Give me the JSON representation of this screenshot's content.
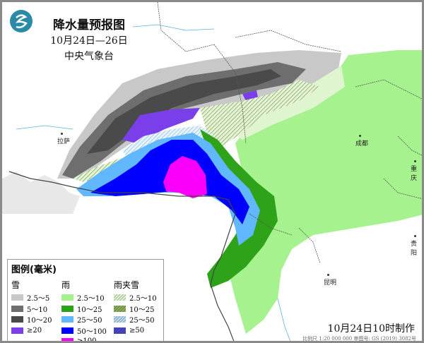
{
  "header": {
    "title": "降水量预报图",
    "date_range": "10月24日—26日",
    "issuer": "中央气象台"
  },
  "cities": [
    "拉萨",
    "成都",
    "重庆",
    "贵阳",
    "昆明"
  ],
  "legend": {
    "title": "图例(毫米)",
    "groups": [
      {
        "name": "雪",
        "items": [
          {
            "label": "2.5～5",
            "color": "#c8c8c8"
          },
          {
            "label": "5～10",
            "color": "#6e6e6e"
          },
          {
            "label": "10～20",
            "color": "#4a4a4a"
          },
          {
            "label": "≥20",
            "color": "#7a3fe8"
          }
        ]
      },
      {
        "name": "雨",
        "items": [
          {
            "label": "2.5～10",
            "color": "#a6f28e"
          },
          {
            "label": "10～25",
            "color": "#2ea31a"
          },
          {
            "label": "25～50",
            "color": "#61b8ff"
          },
          {
            "label": "50～100",
            "color": "#0000fe"
          },
          {
            "label": "≥100",
            "color": "#fa00fa"
          }
        ]
      },
      {
        "name": "雨夹雪",
        "items": [
          {
            "label": "2.5～10",
            "color": "#dff5d0"
          },
          {
            "label": "10～25",
            "color": "#8cb05a"
          },
          {
            "label": "25～50",
            "color": "#b9dcf2"
          },
          {
            "label": "≥50",
            "color": "#4a4ac8"
          }
        ]
      }
    ]
  },
  "footer": {
    "made": "10月24日10时制作",
    "scale": "比例尺 1:20 000 000  审图号: GS (2019) 3082号"
  }
}
